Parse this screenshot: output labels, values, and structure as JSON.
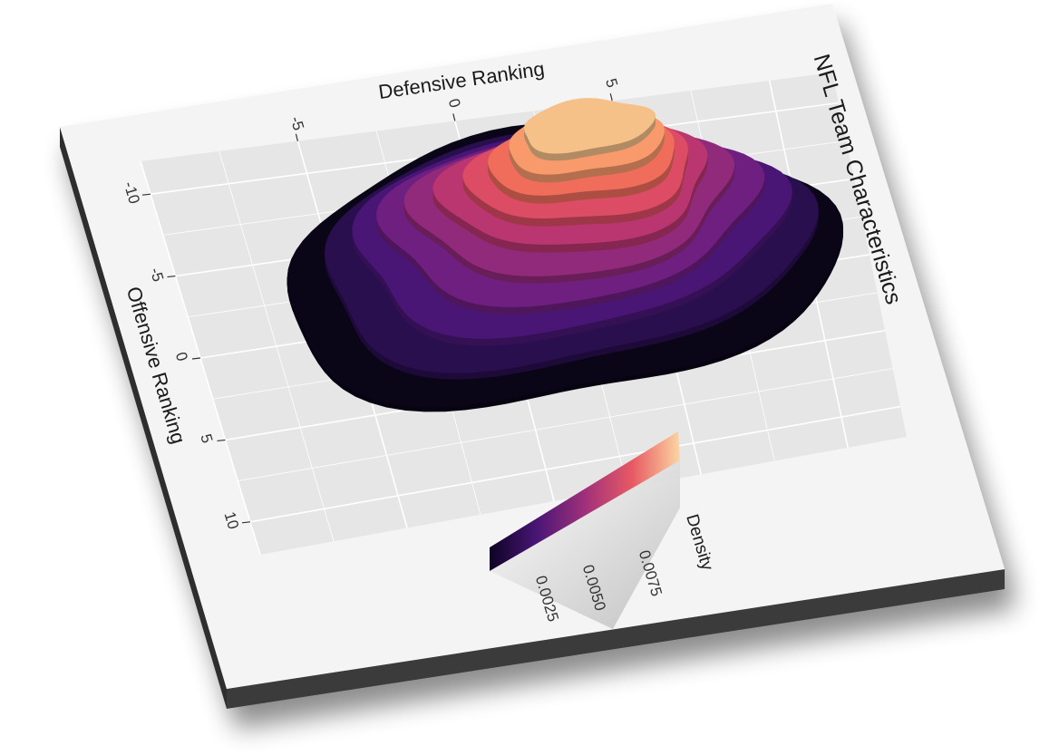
{
  "chart_data": {
    "type": "heatmap",
    "subtype": "3d-density-contour",
    "title": "NFL Team Characteristics",
    "xlabel": "Defensive Ranking",
    "ylabel": "Offensive Ranking",
    "x_ticks": [
      -5,
      0,
      5
    ],
    "y_ticks": [
      -10,
      -5,
      0,
      5,
      10
    ],
    "xlim": [
      -10,
      12
    ],
    "ylim": [
      -12,
      12
    ],
    "legend": {
      "title": "Density",
      "ticks": [
        "0.0025",
        "0.0050",
        "0.0075"
      ],
      "colors": [
        "#000004",
        "#3b0f70",
        "#8c2981",
        "#de4968",
        "#fe9f6d",
        "#fcfdbf"
      ],
      "placement": "bottom-right"
    },
    "density_levels": [
      {
        "level": 0.0005,
        "color": "#0b0617",
        "cx": 2.0,
        "cy": -2.0,
        "rx": 9.0,
        "ry": 8.2
      },
      {
        "level": 0.0012,
        "color": "#2a0f4f",
        "cx": 2.2,
        "cy": -2.6,
        "rx": 7.9,
        "ry": 7.0
      },
      {
        "level": 0.002,
        "color": "#4a1675",
        "cx": 2.4,
        "cy": -3.2,
        "rx": 6.9,
        "ry": 6.0
      },
      {
        "level": 0.0028,
        "color": "#6e1f80",
        "cx": 2.6,
        "cy": -3.7,
        "rx": 6.0,
        "ry": 5.2
      },
      {
        "level": 0.0036,
        "color": "#922a7b",
        "cx": 2.8,
        "cy": -4.2,
        "rx": 5.1,
        "ry": 4.5
      },
      {
        "level": 0.0045,
        "color": "#b93671",
        "cx": 3.0,
        "cy": -4.7,
        "rx": 4.3,
        "ry": 3.8
      },
      {
        "level": 0.0054,
        "color": "#dc4c64",
        "cx": 3.2,
        "cy": -5.1,
        "rx": 3.6,
        "ry": 3.2
      },
      {
        "level": 0.0063,
        "color": "#f06d5c",
        "cx": 3.3,
        "cy": -5.5,
        "rx": 3.0,
        "ry": 2.6
      },
      {
        "level": 0.0072,
        "color": "#f99a6c",
        "cx": 3.4,
        "cy": -5.9,
        "rx": 2.5,
        "ry": 2.1
      },
      {
        "level": 0.008,
        "color": "#f6c189",
        "cx": 3.5,
        "cy": -6.3,
        "rx": 2.1,
        "ry": 1.6
      }
    ],
    "grid": true,
    "panel_background": "#e6e6e6",
    "plot_background": "#f4f4f4"
  }
}
